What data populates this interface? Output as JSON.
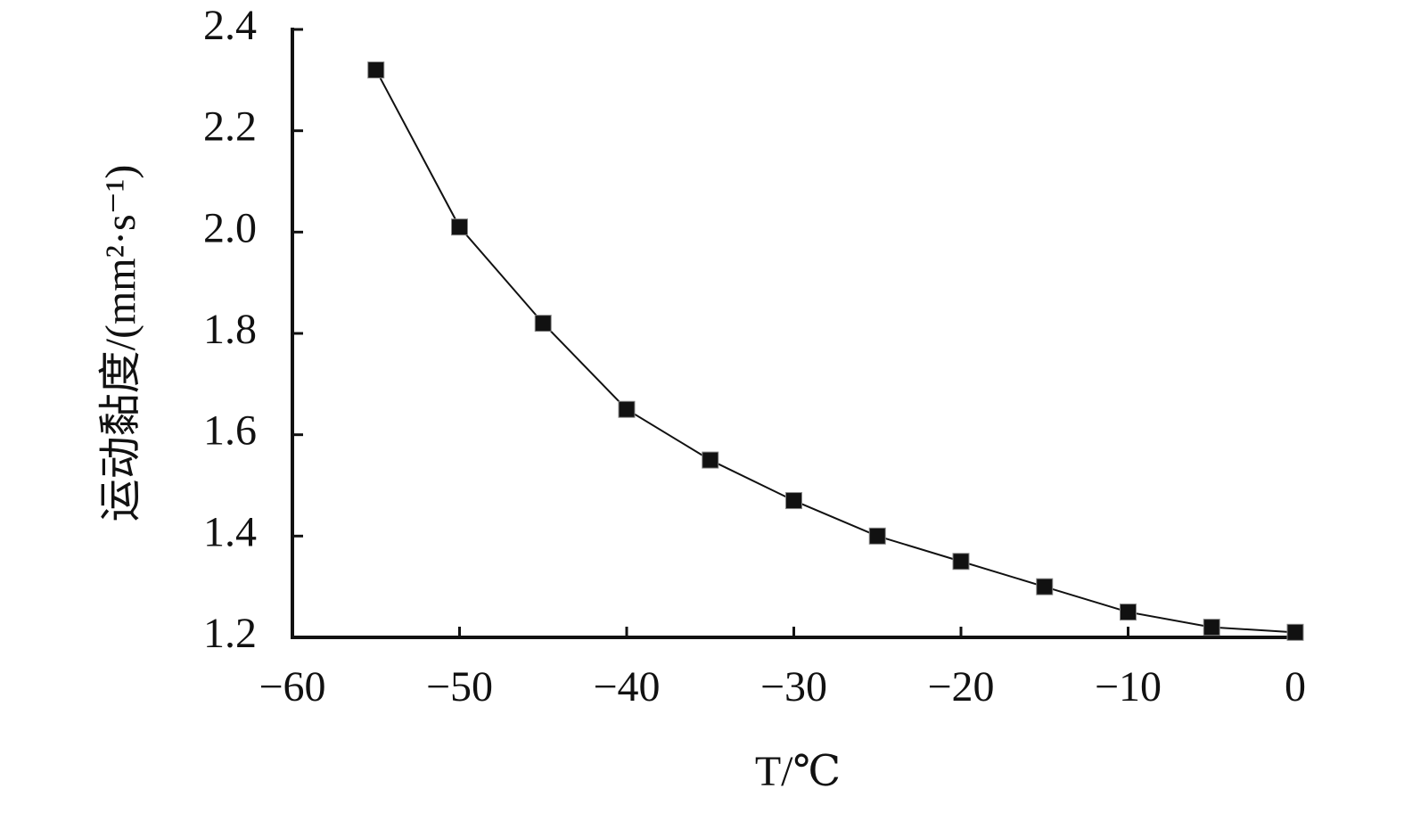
{
  "chart_data": {
    "type": "line",
    "x_label": "T/℃",
    "y_label": "运动黏度/(mm²·s⁻¹)",
    "x": [
      -55,
      -50,
      -45,
      -40,
      -35,
      -30,
      -25,
      -20,
      -15,
      -10,
      -5,
      0
    ],
    "series": [
      {
        "color": "#111111",
        "values": [
          2.32,
          2.01,
          1.82,
          1.65,
          1.55,
          1.47,
          1.4,
          1.35,
          1.3,
          1.25,
          1.22,
          1.21
        ]
      }
    ],
    "xlim": [
      -60,
      0
    ],
    "xticks": [
      {
        "value": -60,
        "label": "−60"
      },
      {
        "value": -50,
        "label": "−50"
      },
      {
        "value": -40,
        "label": "−40"
      },
      {
        "value": -30,
        "label": "−30"
      },
      {
        "value": -20,
        "label": "−20"
      },
      {
        "value": -10,
        "label": "−10"
      },
      0
    ],
    "ylim": [
      1.2,
      2.4
    ],
    "yticks": [
      1.2,
      1.4,
      1.6,
      1.8,
      {
        "value": 2,
        "label": "2.0"
      },
      2.2,
      2.4
    ],
    "grid": false
  }
}
